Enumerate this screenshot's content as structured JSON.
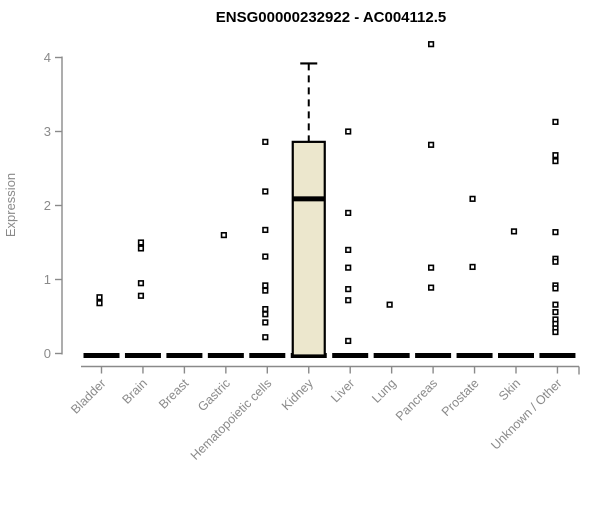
{
  "title": "ENSG00000232922 - AC004112.5",
  "colors": {
    "axis": "#8a8a8a",
    "text_gray": "#8a8a8a",
    "title": "#000000",
    "box_fill": "#ece7cd",
    "box_border": "#000000",
    "point": "#000000",
    "zero_bar": "#000000",
    "background": "#ffffff"
  },
  "chart_data": {
    "type": "box",
    "title": "ENSG00000232922 - AC004112.5",
    "xlabel": "",
    "ylabel": "Expression",
    "ylim": [
      0,
      4
    ],
    "yticks": [
      0,
      1,
      2,
      3,
      4
    ],
    "grid": false,
    "legend": false,
    "categories": [
      "Bladder",
      "Brain",
      "Breast",
      "Gastric",
      "Hematopoietic cells",
      "Kidney",
      "Liver",
      "Lung",
      "Pancreas",
      "Prostate",
      "Skin",
      "Unknown / Other"
    ],
    "series": [
      {
        "category": "Bladder",
        "zero_bar_median": 0,
        "points": [
          0.76,
          0.68
        ]
      },
      {
        "category": "Brain",
        "zero_bar_median": 0,
        "points": [
          1.5,
          1.42,
          0.95,
          0.78
        ]
      },
      {
        "category": "Breast",
        "zero_bar_median": 0,
        "points": []
      },
      {
        "category": "Gastric",
        "zero_bar_median": 0,
        "points": [
          1.6
        ]
      },
      {
        "category": "Hematopoietic cells",
        "zero_bar_median": 0,
        "points": [
          2.86,
          2.19,
          1.67,
          1.31,
          0.92,
          0.85,
          0.6,
          0.53,
          0.42,
          0.22
        ]
      },
      {
        "category": "Kidney",
        "zero_bar_median": 0,
        "box": {
          "lower": 0,
          "q1": 0,
          "median": 2.09,
          "q3": 2.86,
          "upper": 3.92
        },
        "points": []
      },
      {
        "category": "Liver",
        "zero_bar_median": 0,
        "points": [
          3.0,
          1.9,
          1.4,
          1.16,
          0.87,
          0.72,
          0.17
        ]
      },
      {
        "category": "Lung",
        "zero_bar_median": 0,
        "points": [
          0.66
        ]
      },
      {
        "category": "Pancreas",
        "zero_bar_median": 0,
        "points": [
          4.18,
          2.82,
          1.16,
          0.89
        ]
      },
      {
        "category": "Prostate",
        "zero_bar_median": 0,
        "points": [
          2.09,
          1.17
        ]
      },
      {
        "category": "Skin",
        "zero_bar_median": 0,
        "points": [
          1.65
        ]
      },
      {
        "category": "Unknown / Other",
        "zero_bar_median": 0,
        "points": [
          3.13,
          2.68,
          2.6,
          1.64,
          1.28,
          1.24,
          0.92,
          0.88,
          0.66,
          0.56,
          0.46,
          0.4,
          0.34,
          0.29
        ]
      }
    ]
  }
}
